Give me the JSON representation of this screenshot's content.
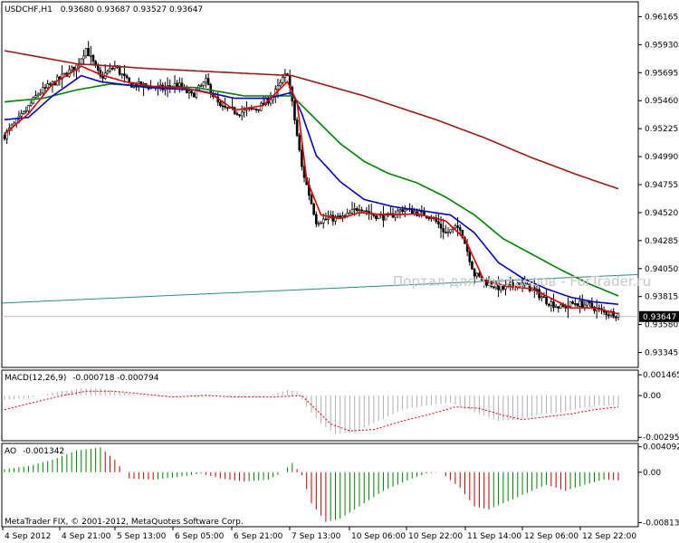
{
  "colors": {
    "background": "#ffffff",
    "frame": "#000000",
    "candle": "#000000",
    "ma_fast": "#e00000",
    "ma_mid": "#0000c8",
    "ma_slow": "#008000",
    "ma_long": "#a01818",
    "trendline": "#2a8a8a",
    "price_line": "#c0c0c0",
    "macd_hist": "#b0b0b0",
    "macd_signal": "#e00000",
    "ao_up": "#008000",
    "ao_down": "#c00000"
  },
  "header": {
    "symbol": "USDCHF,H1",
    "ohlc": "0.93680 0.93687 0.93527 0.93647"
  },
  "watermark": "Портал для трейдеров - ForTrader.ru",
  "footer": "MetaTrader FIX, © 2001-2012, MetaQuotes Software Corp.",
  "current_price": "0.93647",
  "chart_data": [
    {
      "type": "candlestick",
      "title": "USDCHF,H1",
      "ylim": [
        0.9325,
        0.9626
      ],
      "y_ticks": [
        "0.96165",
        "0.95930",
        "0.95695",
        "0.95460",
        "0.95225",
        "0.94990",
        "0.94755",
        "0.94520",
        "0.94285",
        "0.94050",
        "0.93815",
        "0.93580",
        "0.93345"
      ],
      "x_ticks": [
        "4 Sep 2012",
        "4 Sep 21:00",
        "5 Sep 13:00",
        "6 Sep 05:00",
        "6 Sep 21:00",
        "7 Sep 13:00",
        "10 Sep 06:00",
        "10 Sep 22:00",
        "11 Sep 14:00",
        "12 Sep 06:00",
        "12 Sep 22:00"
      ],
      "close_anchors": [
        [
          0,
          0.9517
        ],
        [
          8,
          0.9535
        ],
        [
          14,
          0.9552
        ],
        [
          22,
          0.9563
        ],
        [
          30,
          0.9575
        ],
        [
          34,
          0.959
        ],
        [
          40,
          0.9565
        ],
        [
          46,
          0.9575
        ],
        [
          52,
          0.956
        ],
        [
          60,
          0.9558
        ],
        [
          66,
          0.9556
        ],
        [
          72,
          0.956
        ],
        [
          78,
          0.955
        ],
        [
          84,
          0.9562
        ],
        [
          90,
          0.954
        ],
        [
          98,
          0.9536
        ],
        [
          106,
          0.954
        ],
        [
          112,
          0.955
        ],
        [
          118,
          0.957
        ],
        [
          124,
          0.949
        ],
        [
          130,
          0.9445
        ],
        [
          136,
          0.9447
        ],
        [
          142,
          0.9448
        ],
        [
          148,
          0.9457
        ],
        [
          154,
          0.945
        ],
        [
          160,
          0.9448
        ],
        [
          166,
          0.9455
        ],
        [
          172,
          0.9452
        ],
        [
          178,
          0.9449
        ],
        [
          184,
          0.9435
        ],
        [
          190,
          0.944
        ],
        [
          196,
          0.94
        ],
        [
          202,
          0.9392
        ],
        [
          208,
          0.9388
        ],
        [
          214,
          0.9393
        ],
        [
          220,
          0.9388
        ],
        [
          226,
          0.9378
        ],
        [
          232,
          0.9372
        ],
        [
          238,
          0.9376
        ],
        [
          244,
          0.9374
        ],
        [
          250,
          0.9368
        ],
        [
          256,
          0.9367
        ]
      ],
      "ma_fast_anchors": [
        [
          0,
          0.9518
        ],
        [
          10,
          0.9535
        ],
        [
          20,
          0.956
        ],
        [
          32,
          0.9575
        ],
        [
          40,
          0.9568
        ],
        [
          50,
          0.9562
        ],
        [
          62,
          0.9558
        ],
        [
          74,
          0.9557
        ],
        [
          86,
          0.9552
        ],
        [
          96,
          0.9538
        ],
        [
          108,
          0.9542
        ],
        [
          118,
          0.9562
        ],
        [
          122,
          0.9545
        ],
        [
          126,
          0.948
        ],
        [
          132,
          0.945
        ],
        [
          140,
          0.9447
        ],
        [
          148,
          0.9452
        ],
        [
          160,
          0.945
        ],
        [
          172,
          0.9451
        ],
        [
          184,
          0.9445
        ],
        [
          192,
          0.943
        ],
        [
          200,
          0.9395
        ],
        [
          210,
          0.939
        ],
        [
          220,
          0.9388
        ],
        [
          228,
          0.938
        ],
        [
          236,
          0.9372
        ],
        [
          246,
          0.9372
        ],
        [
          256,
          0.9367
        ]
      ],
      "ma_mid_anchors": [
        [
          0,
          0.953
        ],
        [
          10,
          0.9532
        ],
        [
          20,
          0.955
        ],
        [
          32,
          0.9567
        ],
        [
          40,
          0.9562
        ],
        [
          60,
          0.9557
        ],
        [
          80,
          0.9555
        ],
        [
          96,
          0.9548
        ],
        [
          110,
          0.9548
        ],
        [
          120,
          0.9553
        ],
        [
          124,
          0.9535
        ],
        [
          130,
          0.95
        ],
        [
          140,
          0.9478
        ],
        [
          150,
          0.9463
        ],
        [
          162,
          0.9457
        ],
        [
          176,
          0.9453
        ],
        [
          186,
          0.945
        ],
        [
          196,
          0.9435
        ],
        [
          206,
          0.941
        ],
        [
          216,
          0.9397
        ],
        [
          226,
          0.9388
        ],
        [
          236,
          0.9381
        ],
        [
          246,
          0.9377
        ],
        [
          256,
          0.9375
        ]
      ],
      "ma_slow_anchors": [
        [
          0,
          0.9545
        ],
        [
          16,
          0.9548
        ],
        [
          30,
          0.9555
        ],
        [
          44,
          0.956
        ],
        [
          60,
          0.9558
        ],
        [
          80,
          0.9557
        ],
        [
          100,
          0.955
        ],
        [
          120,
          0.955
        ],
        [
          130,
          0.953
        ],
        [
          140,
          0.951
        ],
        [
          150,
          0.9495
        ],
        [
          160,
          0.9485
        ],
        [
          172,
          0.9477
        ],
        [
          184,
          0.9465
        ],
        [
          196,
          0.945
        ],
        [
          208,
          0.943
        ],
        [
          220,
          0.9417
        ],
        [
          232,
          0.9404
        ],
        [
          244,
          0.9392
        ],
        [
          256,
          0.9382
        ]
      ],
      "ma_long_anchors": [
        [
          0,
          0.9588
        ],
        [
          30,
          0.9577
        ],
        [
          60,
          0.9573
        ],
        [
          90,
          0.957
        ],
        [
          120,
          0.9567
        ],
        [
          150,
          0.955
        ],
        [
          180,
          0.953
        ],
        [
          200,
          0.9515
        ],
        [
          220,
          0.9498
        ],
        [
          240,
          0.9483
        ],
        [
          256,
          0.9472
        ]
      ],
      "trendline": [
        [
          0,
          0.9376
        ],
        [
          256,
          0.94
        ]
      ],
      "candle_count": 257
    },
    {
      "type": "bar",
      "title": "MACD(12,26,9)",
      "title_values": "-0.000718 -0.000794",
      "ylim": [
        -0.003,
        0.0016
      ],
      "y_ticks": [
        "0.001465",
        "0.00",
        "-0.00295"
      ],
      "values_anchors": [
        [
          0,
          -0.0003
        ],
        [
          10,
          -0.0002
        ],
        [
          20,
          0.0002
        ],
        [
          32,
          0.0005
        ],
        [
          40,
          0.0005
        ],
        [
          50,
          0.0002
        ],
        [
          60,
          -0.0001
        ],
        [
          72,
          0.0
        ],
        [
          84,
          0.0001
        ],
        [
          96,
          -0.0001
        ],
        [
          108,
          -0.0001
        ],
        [
          118,
          0.0004
        ],
        [
          122,
          0.0003
        ],
        [
          126,
          -0.0008
        ],
        [
          132,
          -0.002
        ],
        [
          138,
          -0.0027
        ],
        [
          146,
          -0.0026
        ],
        [
          156,
          -0.0018
        ],
        [
          166,
          -0.001
        ],
        [
          176,
          -0.0007
        ],
        [
          186,
          -0.0005
        ],
        [
          192,
          -0.0009
        ],
        [
          198,
          -0.0013
        ],
        [
          206,
          -0.0018
        ],
        [
          214,
          -0.0017
        ],
        [
          224,
          -0.0013
        ],
        [
          232,
          -0.0012
        ],
        [
          240,
          -0.0009
        ],
        [
          248,
          -0.0007
        ],
        [
          256,
          -0.0007
        ]
      ],
      "signal_anchors": [
        [
          0,
          -0.001
        ],
        [
          12,
          -0.0005
        ],
        [
          24,
          0.0
        ],
        [
          34,
          0.0003
        ],
        [
          46,
          0.0003
        ],
        [
          58,
          0.0001
        ],
        [
          70,
          -0.0001
        ],
        [
          84,
          0.0
        ],
        [
          96,
          -0.0001
        ],
        [
          112,
          -0.0001
        ],
        [
          124,
          0.0
        ],
        [
          130,
          -0.001
        ],
        [
          136,
          -0.002
        ],
        [
          144,
          -0.0025
        ],
        [
          154,
          -0.0024
        ],
        [
          166,
          -0.0018
        ],
        [
          178,
          -0.0013
        ],
        [
          188,
          -0.0008
        ],
        [
          198,
          -0.0009
        ],
        [
          208,
          -0.0014
        ],
        [
          216,
          -0.0017
        ],
        [
          226,
          -0.0015
        ],
        [
          236,
          -0.0013
        ],
        [
          246,
          -0.001
        ],
        [
          256,
          -0.0008
        ]
      ]
    },
    {
      "type": "bar",
      "title": "AO",
      "title_values": "-0.001342",
      "ylim": [
        -0.0082,
        0.0042
      ],
      "y_ticks": [
        "0.004092",
        "0.00",
        "-0.00813"
      ],
      "values_anchors": [
        [
          0,
          0.0005
        ],
        [
          10,
          0.001
        ],
        [
          20,
          0.002
        ],
        [
          30,
          0.0035
        ],
        [
          40,
          0.004
        ],
        [
          46,
          0.002
        ],
        [
          52,
          -0.001
        ],
        [
          62,
          -0.0012
        ],
        [
          72,
          -0.0008
        ],
        [
          82,
          -0.0002
        ],
        [
          90,
          -0.001
        ],
        [
          100,
          -0.0015
        ],
        [
          110,
          -0.0012
        ],
        [
          116,
          0.0
        ],
        [
          120,
          0.0015
        ],
        [
          124,
          -0.0005
        ],
        [
          128,
          -0.005
        ],
        [
          134,
          -0.008
        ],
        [
          140,
          -0.0075
        ],
        [
          146,
          -0.006
        ],
        [
          152,
          -0.0045
        ],
        [
          158,
          -0.003
        ],
        [
          164,
          -0.002
        ],
        [
          170,
          -0.001
        ],
        [
          176,
          -0.0002
        ],
        [
          182,
          0.0
        ],
        [
          190,
          -0.0025
        ],
        [
          196,
          -0.0055
        ],
        [
          202,
          -0.006
        ],
        [
          208,
          -0.005
        ],
        [
          214,
          -0.004
        ],
        [
          220,
          -0.003
        ],
        [
          226,
          -0.002
        ],
        [
          234,
          -0.003
        ],
        [
          242,
          -0.002
        ],
        [
          250,
          -0.0012
        ],
        [
          256,
          -0.0013
        ]
      ]
    }
  ]
}
